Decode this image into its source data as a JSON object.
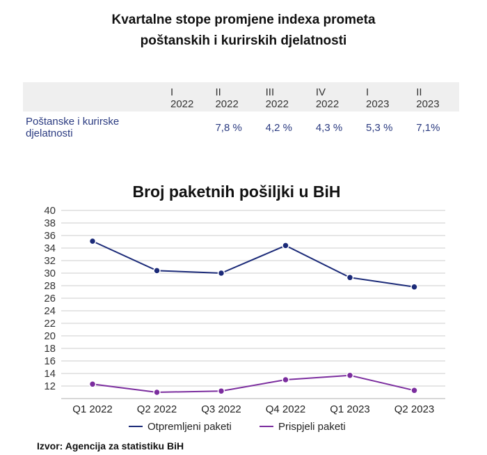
{
  "title_line1": "Kvartalne stope promjene indexa prometa",
  "title_line2": "poštanskih i kurirskih djelatnosti",
  "table": {
    "headers": [
      [
        "I",
        "2022"
      ],
      [
        "II",
        "2022"
      ],
      [
        "III",
        "2022"
      ],
      [
        "IV",
        "2022"
      ],
      [
        "I",
        "2023"
      ],
      [
        "II",
        "2023"
      ]
    ],
    "row_label": "Poštanske i kurirske djelatnosti",
    "values": [
      "",
      "7,8 %",
      "4,2 %",
      "4,3 %",
      "5,3 %",
      "7,1%"
    ]
  },
  "chart_data": {
    "type": "line",
    "title": "Broj paketnih pošiljki u BiH",
    "categories": [
      "Q1 2022",
      "Q2 2022",
      "Q3 2022",
      "Q4 2022",
      "Q1 2023",
      "Q2 2023"
    ],
    "yticks": [
      12,
      14,
      16,
      18,
      20,
      22,
      24,
      26,
      28,
      30,
      32,
      34,
      36,
      38,
      40
    ],
    "ylim": [
      10,
      40
    ],
    "grid": true,
    "legend": "bottom",
    "series": [
      {
        "name": "Otpremljeni paketi",
        "color": "#1b2a78",
        "values": [
          35.1,
          30.4,
          30.0,
          34.4,
          29.3,
          27.8
        ]
      },
      {
        "name": "Prispjeli paketi",
        "color": "#7b2d9e",
        "values": [
          12.3,
          11.0,
          11.2,
          13.0,
          13.7,
          11.3
        ]
      }
    ]
  },
  "source": "Izvor: Agencija za statistiku BiH"
}
